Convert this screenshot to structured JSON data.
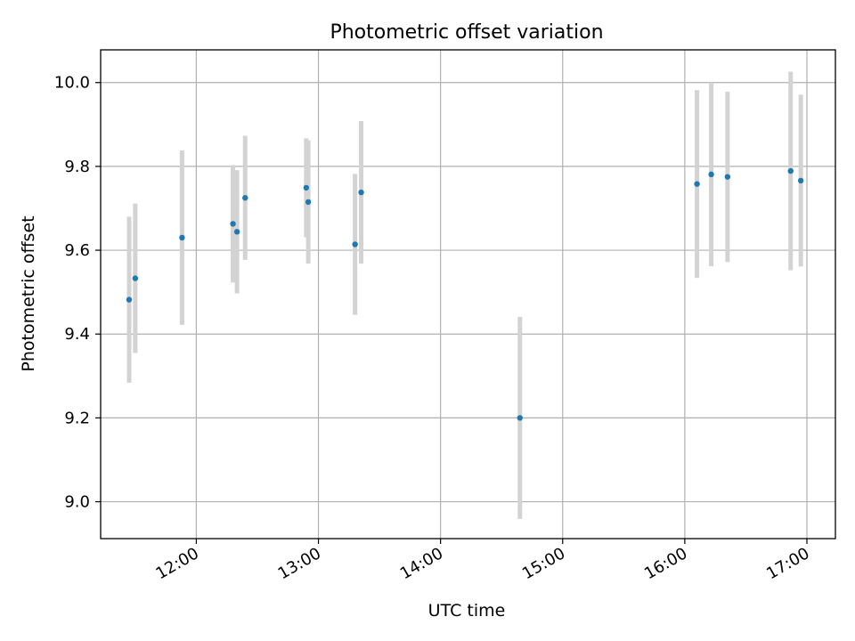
{
  "chart_data": {
    "type": "scatter",
    "title": "Photometric offset variation",
    "xlabel": "UTC time",
    "ylabel": "Photometric offset",
    "x_ticks": [
      "12:00",
      "13:00",
      "14:00",
      "15:00",
      "16:00",
      "17:00"
    ],
    "y_ticks": [
      "9.0",
      "9.2",
      "9.4",
      "9.6",
      "9.8",
      "10.0"
    ],
    "xlim": [
      "11:13",
      "17:14"
    ],
    "ylim": [
      8.912,
      10.078
    ],
    "grid": true,
    "point_color": "#1f77b4",
    "errorbar_color": "#d3d3d3",
    "series": [
      {
        "points": [
          {
            "time": "11:27",
            "value": 9.482,
            "err": 0.198
          },
          {
            "time": "11:30",
            "value": 9.533,
            "err": 0.178
          },
          {
            "time": "11:53",
            "value": 9.63,
            "err": 0.208
          },
          {
            "time": "12:18",
            "value": 9.663,
            "err": 0.14
          },
          {
            "time": "12:20",
            "value": 9.644,
            "err": 0.147
          },
          {
            "time": "12:24",
            "value": 9.725,
            "err": 0.148
          },
          {
            "time": "12:54",
            "value": 9.749,
            "err": 0.118
          },
          {
            "time": "12:55",
            "value": 9.715,
            "err": 0.147
          },
          {
            "time": "13:18",
            "value": 9.614,
            "err": 0.168
          },
          {
            "time": "13:21",
            "value": 9.738,
            "err": 0.17
          },
          {
            "time": "14:39",
            "value": 9.2,
            "err": 0.241
          },
          {
            "time": "16:06",
            "value": 9.758,
            "err": 0.224
          },
          {
            "time": "16:13",
            "value": 9.781,
            "err": 0.219
          },
          {
            "time": "16:21",
            "value": 9.775,
            "err": 0.203
          },
          {
            "time": "16:52",
            "value": 9.789,
            "err": 0.237
          },
          {
            "time": "16:57",
            "value": 9.766,
            "err": 0.205
          }
        ]
      }
    ]
  }
}
